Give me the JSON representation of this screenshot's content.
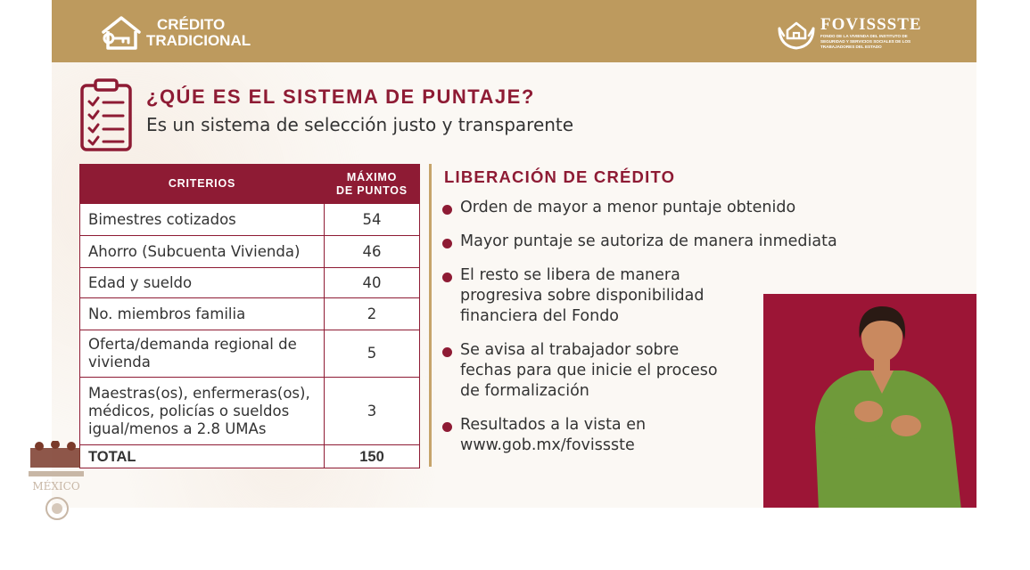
{
  "header": {
    "program_line1": "CRÉDITO",
    "program_line2": "TRADICIONAL",
    "brand_name": "FOVISSSTE",
    "brand_subtitle": "FONDO DE LA VIVIENDA DEL INSTITUTO DE SEGURIDAD Y SERVICIOS SOCIALES DE LOS TRABAJADORES DEL ESTADO"
  },
  "section": {
    "title": "¿QÚE ES EL SISTEMA DE PUNTAJE?",
    "subtitle": "Es un sistema de selección justo y transparente"
  },
  "table": {
    "header_criteria": "CRITERIOS",
    "header_max_line1": "MÁXIMO",
    "header_max_line2": "DE PUNTOS",
    "rows": [
      {
        "criterion": "Bimestres cotizados",
        "points": "54"
      },
      {
        "criterion": "Ahorro (Subcuenta Vivienda)",
        "points": "46"
      },
      {
        "criterion": "Edad y sueldo",
        "points": "40"
      },
      {
        "criterion": "No. miembros familia",
        "points": "2"
      },
      {
        "criterion": "Oferta/demanda regional de vivienda",
        "points": "5"
      },
      {
        "criterion": "Maestras(os), enfermeras(os), médicos, policías o sueldos igual/menos a 2.8 UMAs",
        "points": "3"
      }
    ],
    "total_label": "TOTAL",
    "total_points": "150"
  },
  "liberacion": {
    "title": "LIBERACIÓN DE CRÉDITO",
    "items": [
      "Orden de mayor a menor puntaje obtenido",
      "Mayor puntaje se autoriza de manera inmediata",
      "El resto se libera de manera progresiva sobre disponibilidad financiera del Fondo",
      "Se avisa al trabajador sobre fechas para que inicie el proceso de formalización",
      "Resultados a la vista en www.gob.mx/fovissste"
    ]
  },
  "footer": {
    "gov_logo_text": "MÉXICO"
  },
  "colors": {
    "header_gold": "#bd9a5e",
    "accent_maroon": "#8e1b34",
    "interpreter_bg": "#9c1536"
  }
}
